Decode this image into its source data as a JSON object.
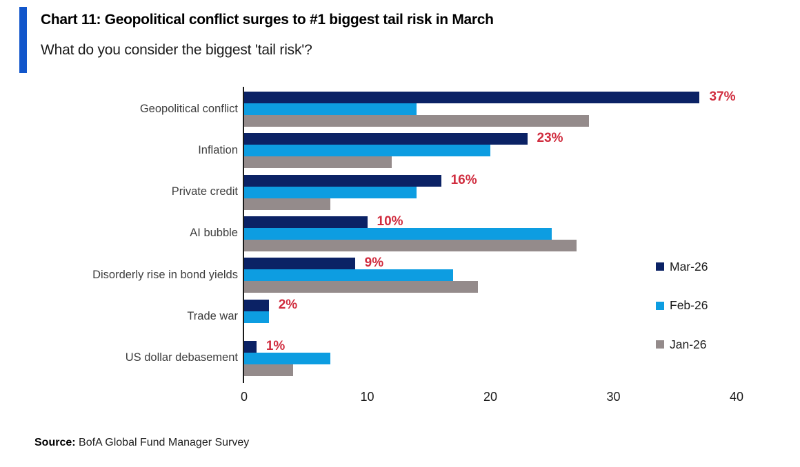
{
  "header": {
    "title": "Chart 11: Geopolitical conflict surges to #1 biggest tail risk in March",
    "subtitle": "What do you consider the biggest 'tail risk'?",
    "accent_color": "#1156cb"
  },
  "chart_data": {
    "type": "bar",
    "orientation": "horizontal",
    "title": "What do you consider the biggest 'tail risk'?",
    "categories": [
      "Geopolitical conflict",
      "Inflation",
      "Private credit",
      "AI bubble",
      "Disorderly rise in bond yields",
      "Trade war",
      "US dollar debasement"
    ],
    "series": [
      {
        "name": "Mar-26",
        "color": "#0b2265",
        "values": [
          37,
          23,
          16,
          10,
          9,
          2,
          1
        ]
      },
      {
        "name": "Feb-26",
        "color": "#0d9de1",
        "values": [
          14,
          20,
          14,
          25,
          17,
          2,
          7
        ]
      },
      {
        "name": "Jan-26",
        "color": "#948b8b",
        "values": [
          28,
          12,
          7,
          27,
          19,
          0,
          4
        ]
      }
    ],
    "data_labels": [
      "37%",
      "23%",
      "16%",
      "10%",
      "9%",
      "2%",
      "1%"
    ],
    "data_label_series": "Mar-26",
    "data_label_color": "#d02c3e",
    "x_ticks": [
      0,
      10,
      20,
      30,
      40
    ],
    "xlim": [
      0,
      40
    ],
    "xlabel": "",
    "ylabel": "",
    "grid": false,
    "legend_position": "right"
  },
  "source": {
    "label": "Source:",
    "text": "BofA Global Fund Manager Survey"
  }
}
